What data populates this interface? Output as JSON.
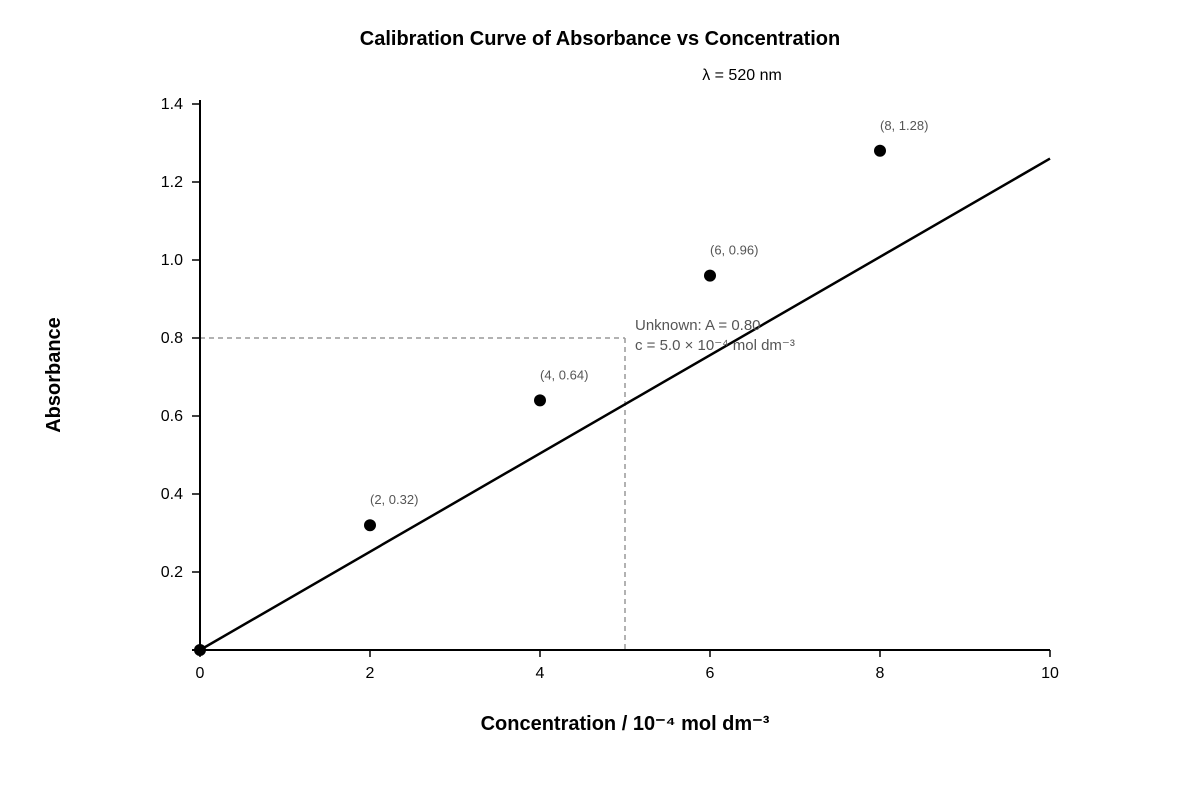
{
  "chart_data": {
    "type": "scatter",
    "title": "Calibration Curve of Absorbance vs Concentration",
    "subtitle": "λ = 520 nm",
    "xlabel": "Concentration / 10⁻⁴ mol dm⁻³",
    "ylabel": "Absorbance",
    "xlim": [
      0,
      10
    ],
    "ylim": [
      0,
      1.4
    ],
    "x_ticks": [
      0,
      2,
      4,
      6,
      8,
      10
    ],
    "x_tick_labels": [
      "0",
      "2",
      "4",
      "6",
      "8",
      "10"
    ],
    "y_ticks": [
      0.2,
      0.4,
      0.6,
      0.8,
      1.0,
      1.2,
      1.4
    ],
    "y_tick_labels": [
      "0.2",
      "0.4",
      "0.6",
      "0.8",
      "1.0",
      "1.2",
      "1.4"
    ],
    "grid": false,
    "series": [
      {
        "points": [
          {
            "x": 0,
            "y": 0
          },
          {
            "x": 2,
            "y": 0.32
          },
          {
            "x": 4,
            "y": 0.64
          },
          {
            "x": 6,
            "y": 0.96
          },
          {
            "x": 8,
            "y": 1.28
          }
        ],
        "point_labels": [
          "",
          "(2, 0.32)",
          "(4, 0.64)",
          "(6, 0.96)",
          "(8, 1.28)"
        ]
      }
    ],
    "fit_line": {
      "x": [
        0,
        10
      ],
      "y": [
        0,
        1.26
      ]
    },
    "unknown": {
      "x": 5.0,
      "y": 0.8,
      "label_line1": "Unknown: A = 0.80",
      "label_line2": "c = 5.0 × 10⁻⁴ mol dm⁻³"
    },
    "colors": {
      "points": "#000000",
      "fit_line": "#000000",
      "guide": "#999999",
      "annotation_text": "#555555"
    }
  }
}
